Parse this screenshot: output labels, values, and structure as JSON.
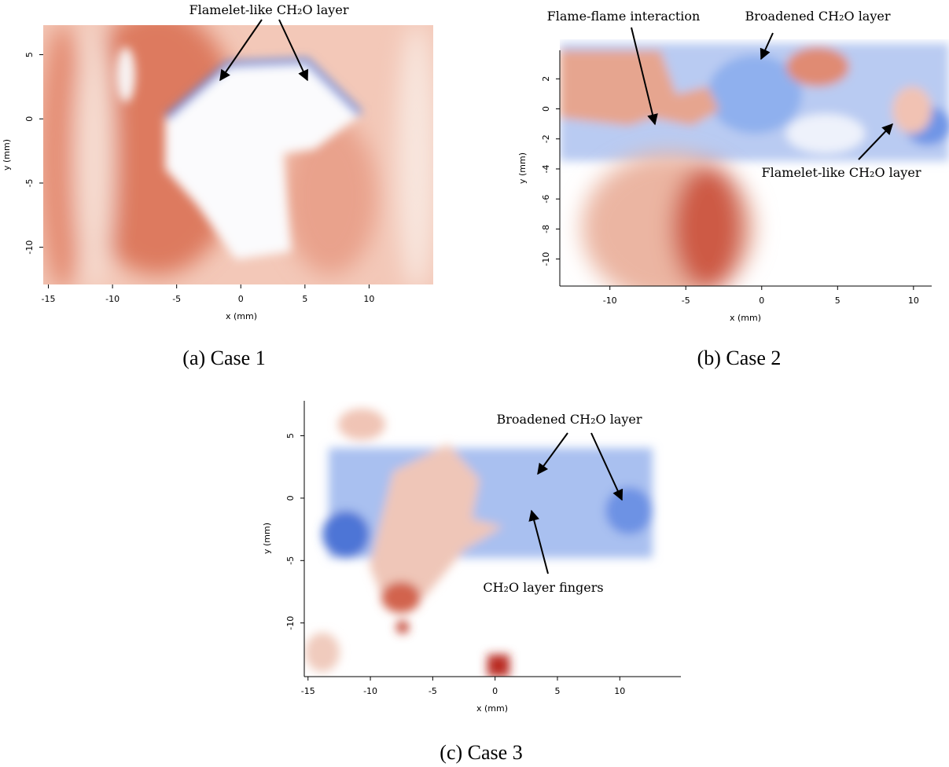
{
  "panels": [
    {
      "caption": "(a) Case 1",
      "x_label": "x (mm)",
      "y_label": "y (mm)",
      "xlim": [
        -15.4,
        15
      ],
      "ylim": [
        -12.9,
        7.3
      ],
      "xticks": [
        -15,
        -10,
        -5,
        0,
        5,
        10
      ],
      "yticks": [
        5,
        0,
        -5,
        -10
      ],
      "annotations": [
        "Flamelet-like CH₂O layer"
      ]
    },
    {
      "caption": "(b) Case 2",
      "x_label": "x (mm)",
      "y_label": "y (mm)",
      "xlim": [
        -13.3,
        11.2
      ],
      "ylim": [
        -11.8,
        3.9
      ],
      "xticks": [
        -10,
        -5,
        0,
        5,
        10
      ],
      "yticks": [
        2,
        0,
        -2,
        -4,
        -6,
        -8,
        -10
      ],
      "annotations": [
        "Flame-flame interaction",
        "Broadened CH₂O layer",
        "Flamelet-like CH₂O layer"
      ]
    },
    {
      "caption": "(c) Case 3",
      "x_label": "x (mm)",
      "y_label": "y (mm)",
      "xlim": [
        -15.3,
        14.9
      ],
      "ylim": [
        -14.3,
        7.8
      ],
      "xticks": [
        -15,
        -10,
        -5,
        0,
        5,
        10
      ],
      "yticks": [
        5,
        0,
        -5,
        -10
      ],
      "annotations": [
        "Broadened CH₂O layer",
        "CH₂O layer fingers"
      ]
    }
  ]
}
